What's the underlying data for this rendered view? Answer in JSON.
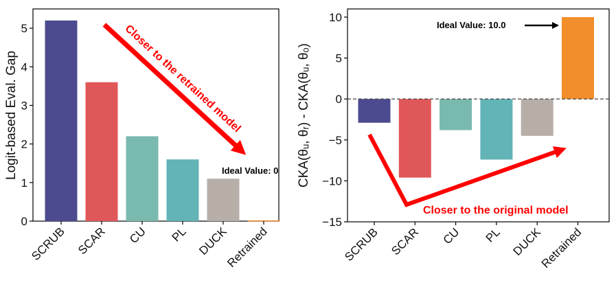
{
  "chart_data": [
    {
      "type": "bar",
      "categories": [
        "SCRUB",
        "SCAR",
        "CU",
        "PL",
        "DUCK",
        "Retrained"
      ],
      "values": [
        5.2,
        3.6,
        2.2,
        1.6,
        1.1,
        0.02
      ],
      "colors": [
        "#4c4b8f",
        "#e05759",
        "#7ab9ae",
        "#63b4b7",
        "#b7aea8",
        "#f28e2b"
      ],
      "title": "",
      "xlabel": "",
      "ylabel": "Logit-based Eval. Gap",
      "ylim": [
        0,
        5.5
      ],
      "yticks": [
        0,
        1,
        2,
        3,
        4,
        5
      ],
      "annotations": {
        "arrow_text": "Closer to the retrained model",
        "ideal_text": "Ideal Value: 0"
      }
    },
    {
      "type": "bar",
      "categories": [
        "SCRUB",
        "SCAR",
        "CU",
        "PL",
        "DUCK",
        "Retrained"
      ],
      "values": [
        -2.9,
        -9.6,
        -3.8,
        -7.4,
        -4.5,
        10.0
      ],
      "colors": [
        "#4c4b8f",
        "#e05759",
        "#7ab9ae",
        "#63b4b7",
        "#b7aea8",
        "#f28e2b"
      ],
      "title": "",
      "xlabel": "",
      "ylabel": "CKA(θᵤ, θᵣ) - CKA(θᵤ, θₒ)",
      "ylim": [
        -15,
        11
      ],
      "yticks": [
        -15,
        -10,
        -5,
        0,
        5,
        10
      ],
      "reference_line": 0,
      "annotations": {
        "ideal_text": "Ideal Value: 10.0",
        "arrow_text": "Closer to the original model"
      }
    }
  ]
}
